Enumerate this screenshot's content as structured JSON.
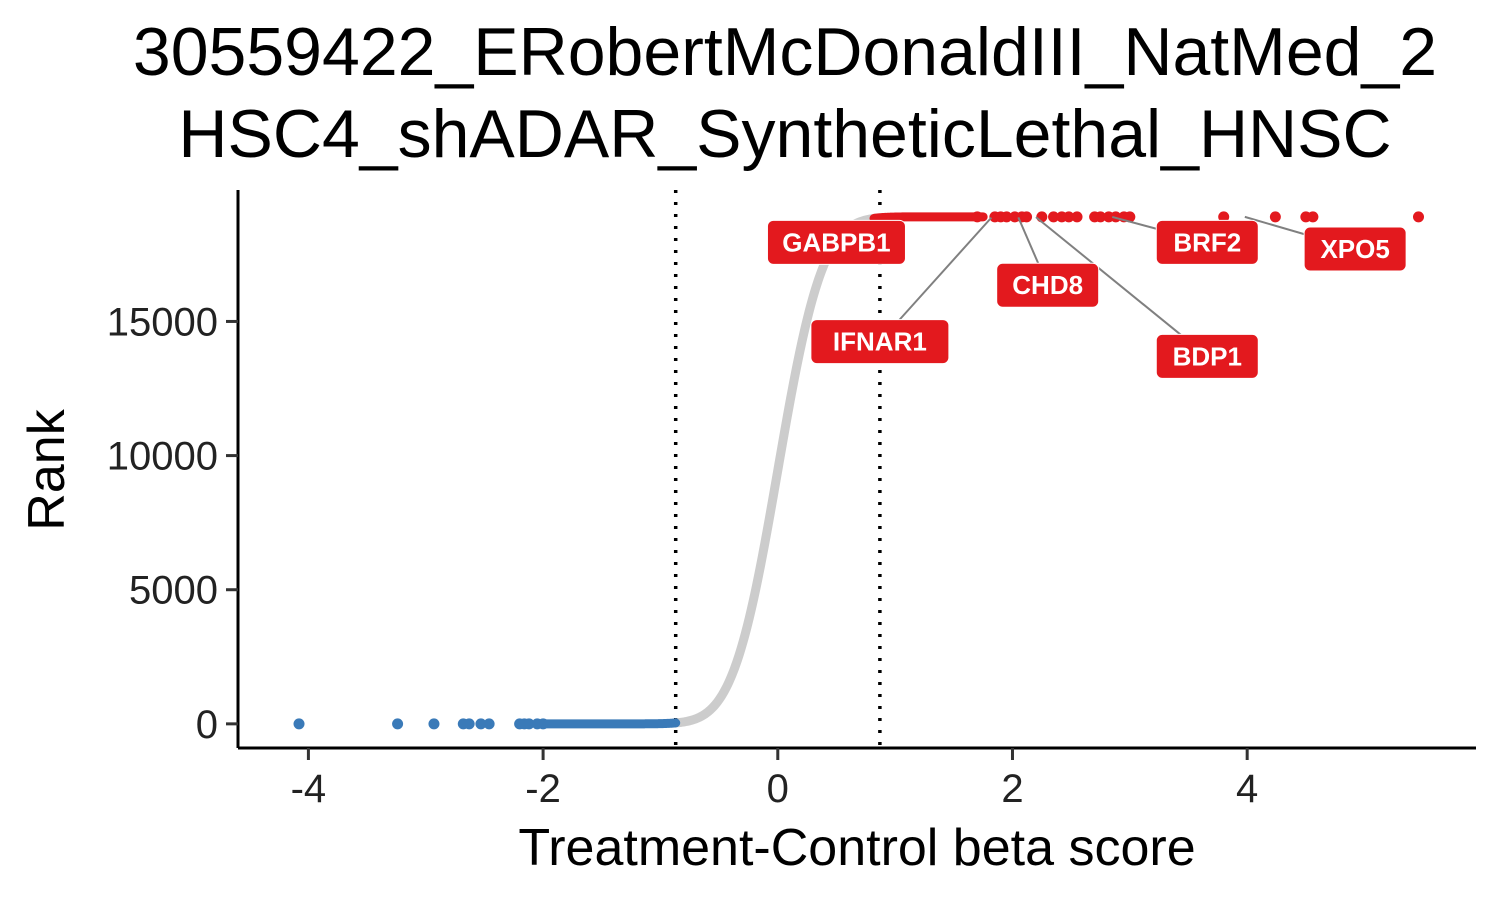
{
  "chart_data": {
    "type": "scatter",
    "title_lines": [
      "30559422_ERobertMcDonaldIII_NatMed_2",
      "HSC4_shADAR_SyntheticLethal_HNSC"
    ],
    "xlabel": "Treatment-Control beta score",
    "ylabel": "Rank",
    "xlim": [
      -4.6,
      5.95
    ],
    "ylim": [
      -900,
      19900
    ],
    "xticks": [
      -4,
      -2,
      0,
      2,
      4
    ],
    "xtick_labels": [
      "-4",
      "-2",
      "0",
      "2",
      "4"
    ],
    "yticks": [
      0,
      5000,
      10000,
      15000
    ],
    "ytick_labels": [
      "0",
      "5000",
      "10000",
      "15000"
    ],
    "thresholds": [
      -0.87,
      0.87
    ],
    "grid": false,
    "colors": {
      "negative": "#3a7ab8",
      "neutral": "#cccccc",
      "positive": "#e3191e",
      "label_line": "#808080",
      "threshold_line": "#000000"
    },
    "total_genes": 18900,
    "curve": {
      "mean": 0.0,
      "sd": 0.3
    },
    "negative_tail_points": [
      {
        "x": -4.08,
        "y": 0
      },
      {
        "x": -3.24,
        "y": 0
      },
      {
        "x": -2.93,
        "y": 0
      },
      {
        "x": -2.68,
        "y": 0
      },
      {
        "x": -2.63,
        "y": 0
      },
      {
        "x": -2.53,
        "y": 0
      },
      {
        "x": -2.46,
        "y": 0
      },
      {
        "x": -2.2,
        "y": 0
      },
      {
        "x": -2.16,
        "y": 0
      },
      {
        "x": -2.12,
        "y": 0
      },
      {
        "x": -2.05,
        "y": 0
      },
      {
        "x": -2.0,
        "y": 0
      }
    ],
    "positive_tail_points": [
      {
        "x": 1.7,
        "y": 18900
      },
      {
        "x": 1.85,
        "y": 18900
      },
      {
        "x": 1.9,
        "y": 18900
      },
      {
        "x": 1.95,
        "y": 18900
      },
      {
        "x": 2.02,
        "y": 18900
      },
      {
        "x": 2.08,
        "y": 18900
      },
      {
        "x": 2.12,
        "y": 18900
      },
      {
        "x": 2.25,
        "y": 18900
      },
      {
        "x": 2.35,
        "y": 18900
      },
      {
        "x": 2.42,
        "y": 18900
      },
      {
        "x": 2.48,
        "y": 18900
      },
      {
        "x": 2.55,
        "y": 18900
      },
      {
        "x": 2.7,
        "y": 18900
      },
      {
        "x": 2.75,
        "y": 18900
      },
      {
        "x": 2.82,
        "y": 18900
      },
      {
        "x": 2.88,
        "y": 18900
      },
      {
        "x": 2.95,
        "y": 18900
      },
      {
        "x": 3.0,
        "y": 18900
      },
      {
        "x": 3.8,
        "y": 18900
      },
      {
        "x": 4.24,
        "y": 18900
      },
      {
        "x": 4.5,
        "y": 18900
      },
      {
        "x": 4.56,
        "y": 18900
      },
      {
        "x": 5.46,
        "y": 18900
      }
    ],
    "labeled_genes": [
      {
        "name": "GABPB1",
        "x": 0.95,
        "y": 18650,
        "label_x": 0.5,
        "label_y": 17950
      },
      {
        "name": "IFNAR1",
        "x": 1.82,
        "y": 18870,
        "label_x": 0.87,
        "label_y": 14250
      },
      {
        "name": "CHD8",
        "x": 2.05,
        "y": 18880,
        "label_x": 2.3,
        "label_y": 16350
      },
      {
        "name": "BDP1",
        "x": 2.2,
        "y": 18890,
        "label_x": 3.66,
        "label_y": 13700
      },
      {
        "name": "BRF2",
        "x": 2.85,
        "y": 18895,
        "label_x": 3.66,
        "label_y": 17950
      },
      {
        "name": "XPO5",
        "x": 3.98,
        "y": 18898,
        "label_x": 4.92,
        "label_y": 17700
      }
    ]
  }
}
